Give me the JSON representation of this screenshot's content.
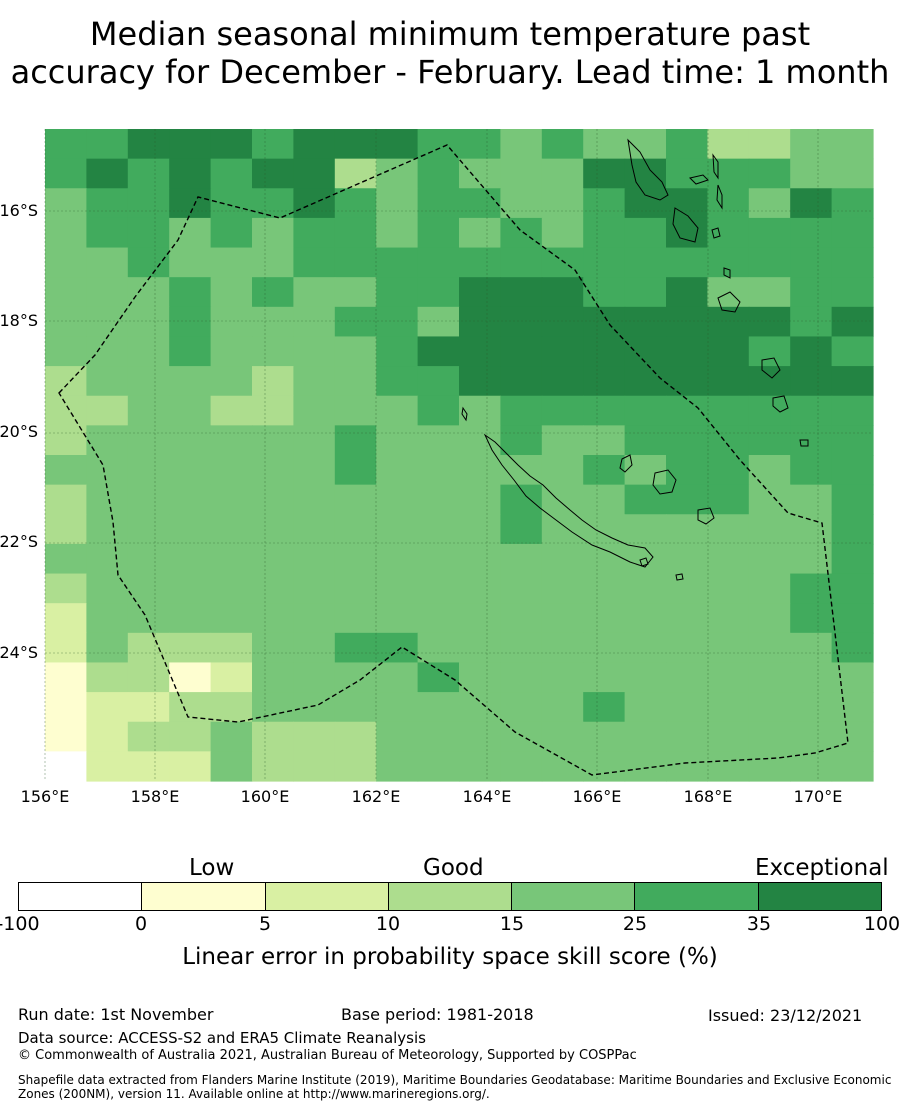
{
  "title": {
    "line1": "Median seasonal minimum temperature past",
    "line2": "accuracy for December - February. Lead time: 1 month"
  },
  "map": {
    "lat_labels": [
      "16°S",
      "18°S",
      "20°S",
      "22°S",
      "24°S"
    ],
    "lon_labels": [
      "156°E",
      "158°E",
      "160°E",
      "162°E",
      "164°E",
      "166°E",
      "168°E",
      "170°E"
    ],
    "extent": {
      "lon_min": 156,
      "lon_max": 171,
      "lat_min": -25.8,
      "lat_max": -14.3
    },
    "grid_step_deg": 0.833,
    "skill_grid_note": "rows north to south, columns west to east; category index 0-7 matches legend",
    "skill_grid": [
      [
        5,
        5,
        6,
        6,
        6,
        5,
        6,
        6,
        6,
        5,
        5,
        4,
        5,
        4,
        4,
        5,
        3,
        3,
        4,
        4
      ],
      [
        5,
        6,
        5,
        6,
        5,
        6,
        6,
        3,
        4,
        5,
        4,
        4,
        4,
        6,
        6,
        5,
        5,
        5,
        4,
        4
      ],
      [
        4,
        5,
        5,
        6,
        5,
        5,
        6,
        5,
        4,
        5,
        5,
        4,
        4,
        5,
        6,
        6,
        5,
        4,
        6,
        5
      ],
      [
        4,
        5,
        5,
        4,
        5,
        4,
        5,
        5,
        4,
        5,
        4,
        5,
        4,
        5,
        5,
        6,
        5,
        5,
        5,
        5
      ],
      [
        4,
        4,
        5,
        4,
        4,
        4,
        5,
        5,
        5,
        5,
        5,
        5,
        5,
        5,
        5,
        5,
        5,
        5,
        5,
        5
      ],
      [
        4,
        4,
        4,
        5,
        4,
        5,
        4,
        4,
        5,
        5,
        6,
        6,
        6,
        5,
        5,
        6,
        4,
        4,
        5,
        5
      ],
      [
        4,
        4,
        4,
        5,
        4,
        4,
        4,
        5,
        5,
        4,
        6,
        6,
        6,
        6,
        6,
        6,
        6,
        6,
        5,
        6
      ],
      [
        4,
        4,
        4,
        5,
        4,
        4,
        4,
        4,
        5,
        6,
        6,
        6,
        6,
        6,
        6,
        6,
        6,
        5,
        6,
        5
      ],
      [
        3,
        4,
        4,
        4,
        4,
        3,
        4,
        4,
        5,
        5,
        6,
        6,
        6,
        6,
        6,
        6,
        6,
        6,
        6,
        6
      ],
      [
        3,
        3,
        4,
        4,
        3,
        3,
        4,
        4,
        4,
        5,
        4,
        5,
        5,
        5,
        5,
        5,
        5,
        5,
        5,
        5
      ],
      [
        3,
        4,
        4,
        4,
        4,
        4,
        4,
        5,
        4,
        4,
        4,
        5,
        4,
        4,
        5,
        5,
        5,
        5,
        5,
        5
      ],
      [
        4,
        4,
        4,
        4,
        4,
        4,
        4,
        5,
        4,
        4,
        4,
        4,
        4,
        5,
        4,
        5,
        5,
        4,
        5,
        5
      ],
      [
        3,
        4,
        4,
        4,
        4,
        4,
        4,
        4,
        4,
        4,
        4,
        5,
        4,
        4,
        5,
        5,
        5,
        4,
        4,
        5
      ],
      [
        3,
        4,
        4,
        4,
        4,
        4,
        4,
        4,
        4,
        4,
        4,
        5,
        4,
        4,
        4,
        4,
        4,
        4,
        4,
        5
      ],
      [
        4,
        4,
        4,
        4,
        4,
        4,
        4,
        4,
        4,
        4,
        4,
        4,
        4,
        4,
        4,
        4,
        4,
        4,
        4,
        5
      ],
      [
        3,
        4,
        4,
        4,
        4,
        4,
        4,
        4,
        4,
        4,
        4,
        4,
        4,
        4,
        4,
        4,
        4,
        4,
        5,
        5
      ],
      [
        2,
        4,
        4,
        4,
        4,
        4,
        4,
        4,
        4,
        4,
        4,
        4,
        4,
        4,
        4,
        4,
        4,
        4,
        5,
        5
      ],
      [
        2,
        4,
        3,
        3,
        3,
        4,
        4,
        5,
        5,
        4,
        4,
        4,
        4,
        4,
        4,
        4,
        4,
        4,
        4,
        5
      ],
      [
        1,
        3,
        3,
        1,
        2,
        4,
        4,
        4,
        4,
        5,
        4,
        4,
        4,
        4,
        4,
        4,
        4,
        4,
        4,
        4
      ],
      [
        1,
        2,
        2,
        3,
        3,
        4,
        4,
        4,
        4,
        4,
        4,
        4,
        4,
        5,
        4,
        4,
        4,
        4,
        4,
        4
      ],
      [
        1,
        2,
        3,
        3,
        4,
        3,
        3,
        3,
        4,
        4,
        4,
        4,
        4,
        4,
        4,
        4,
        4,
        4,
        4,
        4
      ],
      [
        0,
        2,
        2,
        2,
        4,
        3,
        3,
        3,
        4,
        4,
        4,
        4,
        4,
        4,
        4,
        4,
        4,
        4,
        4,
        4
      ]
    ]
  },
  "legend": {
    "categories": [
      "Low",
      "Good",
      "Exceptional"
    ],
    "colors": [
      "#ffffff",
      "#fefed0",
      "#d9f0a3",
      "#addd8e",
      "#78c679",
      "#41ab5d",
      "#238443",
      "#1e7a3a"
    ],
    "ticks": [
      "-100",
      "0",
      "5",
      "10",
      "15",
      "25",
      "35",
      "100"
    ],
    "label": "Linear error in probability space skill score (%)"
  },
  "footer": {
    "run_date": "Run date: 1st November",
    "base_period": "Base period: 1981-2018",
    "issued": "Issued: 23/12/2021",
    "data_source": "Data source: ACCESS-S2 and ERA5 Climate Reanalysis",
    "copyright": "© Commonwealth of Australia 2021, Australian Bureau of Meteorology, Supported by COSPPac",
    "shapefile": "Shapefile data extracted from Flanders Marine Institute (2019), Maritime Boundaries Geodatabase: Maritime Boundaries and Exclusive Economic Zones (200NM), version 11. Available online at http://www.marineregions.org/."
  }
}
